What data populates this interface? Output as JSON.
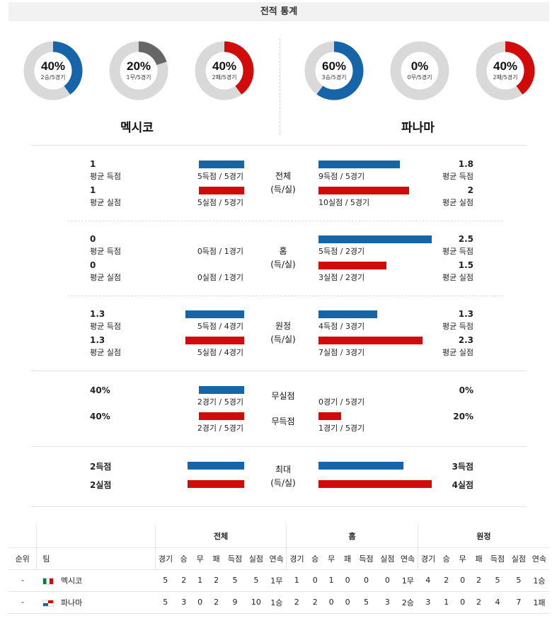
{
  "title": "전적 통계",
  "colors": {
    "blue": "#1565a8",
    "red": "#d10a0a",
    "gray": "#666666",
    "track": "#d9d9d9"
  },
  "donuts": [
    {
      "pct": "40%",
      "sub": "2승/5경기",
      "value": 0.4,
      "color": "#1565a8"
    },
    {
      "pct": "20%",
      "sub": "1무/5경기",
      "value": 0.2,
      "color": "#666666"
    },
    {
      "pct": "40%",
      "sub": "2패/5경기",
      "value": 0.4,
      "color": "#d10a0a"
    },
    {
      "pct": "60%",
      "sub": "3승/5경기",
      "value": 0.6,
      "color": "#1565a8"
    },
    {
      "pct": "0%",
      "sub": "0무/5경기",
      "value": 0.0,
      "color": "#666666"
    },
    {
      "pct": "40%",
      "sub": "2패/5경기",
      "value": 0.4,
      "color": "#d10a0a"
    }
  ],
  "teams": {
    "home": "멕시코",
    "away": "파나마"
  },
  "sections": {
    "total": {
      "label1": "전체",
      "label2": "(득/실)",
      "left": {
        "scored": "1",
        "scored_lbl": "평균 득점",
        "scored_detail": "5득점 / 5경기",
        "scored_fill": 0.4,
        "conceded": "1",
        "conceded_lbl": "평균 실점",
        "conceded_detail": "5실점 / 5경기",
        "conceded_fill": 0.4
      },
      "right": {
        "scored": "1.8",
        "scored_lbl": "평균 득점",
        "scored_detail": "9득점 / 5경기",
        "scored_fill": 0.72,
        "conceded": "2",
        "conceded_lbl": "평균 실점",
        "conceded_detail": "10실점 / 5경기",
        "conceded_fill": 0.8
      }
    },
    "home": {
      "label1": "홈",
      "label2": "(득/실)",
      "left": {
        "scored": "0",
        "scored_lbl": "평균 득점",
        "scored_detail": "0득점 / 1경기",
        "scored_fill": 0,
        "conceded": "0",
        "conceded_lbl": "평균 실점",
        "conceded_detail": "0실점 / 1경기",
        "conceded_fill": 0
      },
      "right": {
        "scored": "2.5",
        "scored_lbl": "평균 득점",
        "scored_detail": "5득점 / 2경기",
        "scored_fill": 1.0,
        "conceded": "1.5",
        "conceded_lbl": "평균 실점",
        "conceded_detail": "3실점 / 2경기",
        "conceded_fill": 0.6
      }
    },
    "away": {
      "label1": "원정",
      "label2": "(득/실)",
      "left": {
        "scored": "1.3",
        "scored_lbl": "평균 득점",
        "scored_detail": "5득점 / 4경기",
        "scored_fill": 0.52,
        "conceded": "1.3",
        "conceded_lbl": "평균 실점",
        "conceded_detail": "5실점 / 4경기",
        "conceded_fill": 0.52
      },
      "right": {
        "scored": "1.3",
        "scored_lbl": "평균 득점",
        "scored_detail": "4득점 / 3경기",
        "scored_fill": 0.52,
        "conceded": "2.3",
        "conceded_lbl": "평균 실점",
        "conceded_detail": "7실점 / 3경기",
        "conceded_fill": 0.92
      }
    },
    "clean": {
      "clean_label": "무실점",
      "fail_label": "무득점",
      "left": {
        "clean": "40%",
        "clean_detail": "2경기 / 5경기",
        "clean_fill": 0.4,
        "fail": "40%",
        "fail_detail": "2경기 / 5경기",
        "fail_fill": 0.4
      },
      "right": {
        "clean": "0%",
        "clean_detail": "0경기 / 5경기",
        "clean_fill": 0,
        "fail": "20%",
        "fail_detail": "1경기 / 5경기",
        "fail_fill": 0.2
      }
    },
    "max": {
      "label1": "최대",
      "label2": "(득/실)",
      "left": {
        "scored": "2득점",
        "scored_fill": 0.5,
        "conceded": "2실점",
        "conceded_fill": 0.5
      },
      "right": {
        "scored": "3득점",
        "scored_fill": 0.75,
        "conceded": "4실점",
        "conceded_fill": 1.0
      }
    }
  },
  "table": {
    "groups": [
      "전체",
      "홈",
      "원정"
    ],
    "head": {
      "rank": "순위",
      "team": "팀"
    },
    "cols": [
      "경기",
      "승",
      "무",
      "패",
      "득점",
      "실점",
      "연속"
    ],
    "rows": [
      {
        "rank": "-",
        "team": "멕시코",
        "flag": "mx",
        "total": [
          "5",
          "2",
          "1",
          "2",
          "5",
          "5",
          "1무"
        ],
        "home": [
          "1",
          "0",
          "1",
          "0",
          "0",
          "0",
          "1무"
        ],
        "away": [
          "4",
          "2",
          "0",
          "2",
          "5",
          "5",
          "1승"
        ]
      },
      {
        "rank": "-",
        "team": "파나마",
        "flag": "pa",
        "total": [
          "5",
          "3",
          "0",
          "2",
          "9",
          "10",
          "1승"
        ],
        "home": [
          "2",
          "2",
          "0",
          "0",
          "5",
          "3",
          "2승"
        ],
        "away": [
          "3",
          "1",
          "0",
          "2",
          "4",
          "7",
          "1패"
        ]
      }
    ]
  }
}
